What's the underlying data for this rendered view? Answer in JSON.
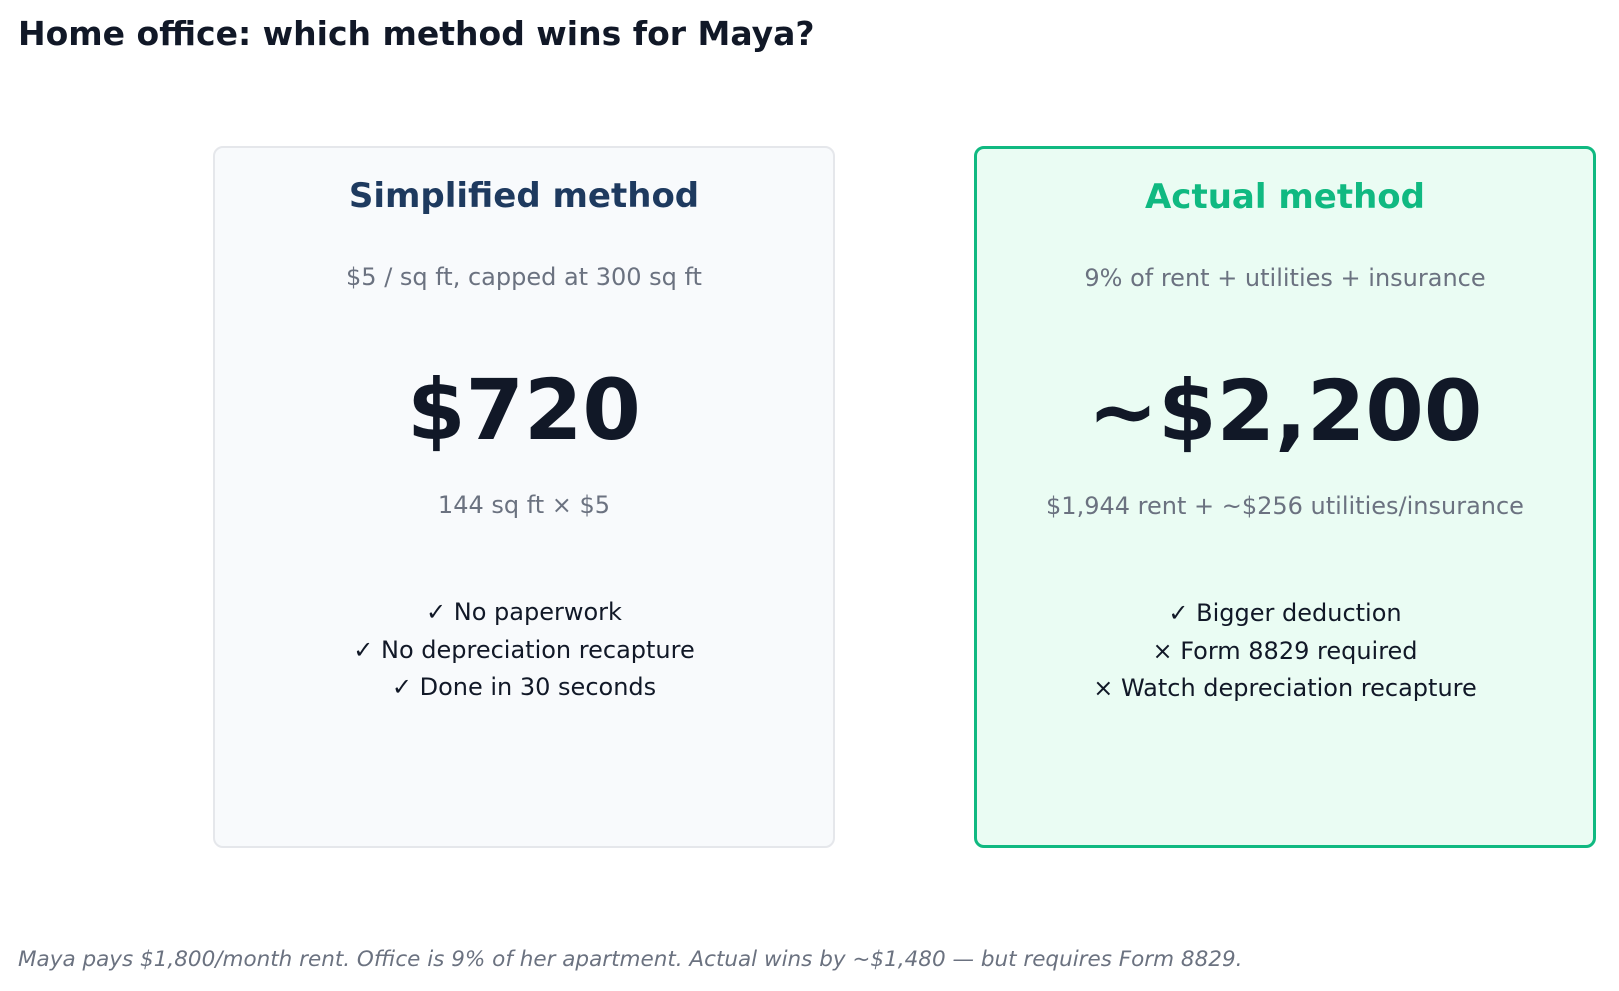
{
  "title": "Home office: which method wins for Maya?",
  "colors": {
    "title_text": "#111827",
    "muted_text": "#6b7280",
    "simplified_heading": "#1e3a5f",
    "simplified_background": "#f8fafc",
    "simplified_border": "#e5e7eb",
    "actual_heading": "#10b981",
    "actual_background": "#eafcf3",
    "actual_border": "#10b981"
  },
  "cards": {
    "simplified": {
      "title": "Simplified method",
      "subtitle": "$5 / sq ft, capped at 300 sq ft",
      "amount": "$720",
      "calculation": "144 sq ft × $5",
      "points": [
        "✓ No paperwork",
        "✓ No depreciation recapture",
        "✓ Done in 30 seconds"
      ]
    },
    "actual": {
      "title": "Actual method",
      "subtitle": "9% of rent + utilities + insurance",
      "amount": "~$2,200",
      "calculation": "$1,944 rent + ~$256 utilities/insurance",
      "points": [
        "✓ Bigger deduction",
        "× Form 8829 required",
        "× Watch depreciation recapture"
      ]
    }
  },
  "footnote": "Maya pays $1,800/month rent. Office is 9% of her apartment. Actual wins by ~$1,480 — but requires Form 8829."
}
